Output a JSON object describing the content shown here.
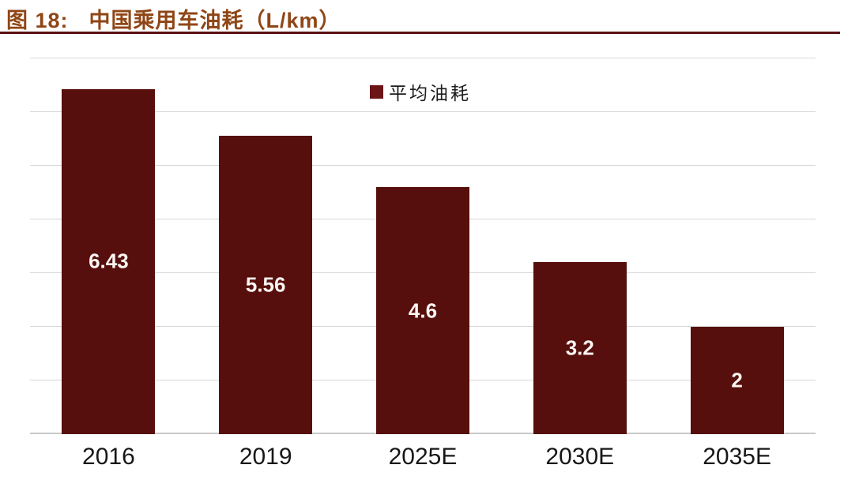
{
  "header": {
    "figure_label": "图 18:",
    "title": "中国乘用车油耗（L/km）"
  },
  "chart_data": {
    "type": "bar",
    "title": "中国乘用车油耗（L/km）",
    "categories": [
      "2016",
      "2019",
      "2025E",
      "2030E",
      "2035E"
    ],
    "values": [
      6.43,
      5.56,
      4.6,
      3.2,
      2
    ],
    "value_labels": [
      "6.43",
      "5.56",
      "4.6",
      "3.2",
      "2"
    ],
    "legend": [
      "平均油耗"
    ],
    "legend_position": "top-center",
    "xlabel": "",
    "ylabel": "",
    "ylim": [
      0,
      7
    ],
    "grid": "horizontal, step 1, y-axis tick labels hidden"
  },
  "colors": {
    "bar": "#560F0C",
    "legend_swatch": "#6B1517",
    "title": "#8F4616",
    "title_rule": "#5A1113",
    "gridline": "#D8D8D8",
    "axis_line": "#C9C9C9",
    "bar_value_text": "#FBF5F3",
    "x_tick_text": "#171717"
  }
}
